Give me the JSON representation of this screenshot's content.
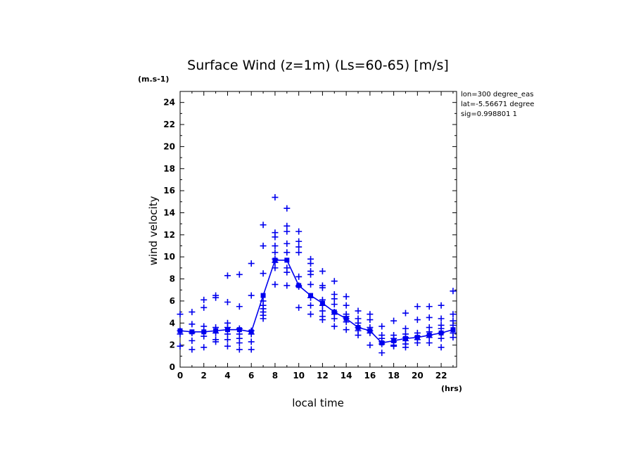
{
  "chart_data": {
    "type": "scatter",
    "title": "Surface Wind (z=1m) (Ls=60-65) [m/s]",
    "ylabel": "wind velocity",
    "xlabel": "local time",
    "y_unit": "(m.s-1)",
    "x_unit": "(hrs)",
    "annotations": [
      "lon=300 degree_eas",
      "lat=-5.56671 degree",
      "sig=0.998801 1"
    ],
    "xlim": [
      0,
      23.3
    ],
    "ylim": [
      0,
      25
    ],
    "xticks": [
      0,
      2,
      4,
      6,
      8,
      10,
      12,
      14,
      16,
      18,
      20,
      22
    ],
    "yticks": [
      0,
      2,
      4,
      6,
      8,
      10,
      12,
      14,
      16,
      18,
      20,
      22,
      24
    ],
    "grid": false,
    "colors": {
      "series": "#0000ee",
      "axes": "#000000"
    },
    "series": [
      {
        "kind": "samples",
        "marker": "plus",
        "points": [
          [
            0,
            4.8
          ],
          [
            0,
            3.3
          ],
          [
            0,
            3.0
          ],
          [
            0,
            1.9
          ],
          [
            1,
            5.0
          ],
          [
            1,
            3.9
          ],
          [
            1,
            3.1
          ],
          [
            1,
            2.4
          ],
          [
            1,
            1.6
          ],
          [
            2,
            6.1
          ],
          [
            2,
            5.4
          ],
          [
            2,
            3.7
          ],
          [
            2,
            3.2
          ],
          [
            2,
            2.8
          ],
          [
            2,
            1.8
          ],
          [
            3,
            6.5
          ],
          [
            3,
            6.3
          ],
          [
            3,
            3.6
          ],
          [
            3,
            3.1
          ],
          [
            3,
            2.5
          ],
          [
            3,
            2.3
          ],
          [
            4,
            8.3
          ],
          [
            4,
            5.9
          ],
          [
            4,
            4.0
          ],
          [
            4,
            3.6
          ],
          [
            4,
            3.0
          ],
          [
            4,
            2.5
          ],
          [
            4,
            1.9
          ],
          [
            5,
            8.4
          ],
          [
            5,
            5.5
          ],
          [
            5,
            3.5
          ],
          [
            5,
            3.0
          ],
          [
            5,
            2.6
          ],
          [
            5,
            2.2
          ],
          [
            5,
            1.6
          ],
          [
            6,
            9.4
          ],
          [
            6,
            6.5
          ],
          [
            6,
            3.3
          ],
          [
            6,
            3.0
          ],
          [
            6,
            2.3
          ],
          [
            6,
            1.6
          ],
          [
            7,
            12.9
          ],
          [
            7,
            11.0
          ],
          [
            7,
            8.5
          ],
          [
            7,
            6.0
          ],
          [
            7,
            5.6
          ],
          [
            7,
            5.3
          ],
          [
            7,
            5.0
          ],
          [
            7,
            4.7
          ],
          [
            7,
            4.4
          ],
          [
            8,
            15.4
          ],
          [
            8,
            12.2
          ],
          [
            8,
            11.8
          ],
          [
            8,
            11.0
          ],
          [
            8,
            10.4
          ],
          [
            8,
            9.8
          ],
          [
            8,
            9.5
          ],
          [
            8,
            9.0
          ],
          [
            8,
            7.5
          ],
          [
            9,
            14.4
          ],
          [
            9,
            12.8
          ],
          [
            9,
            12.3
          ],
          [
            9,
            11.2
          ],
          [
            9,
            10.4
          ],
          [
            9,
            9.0
          ],
          [
            9,
            8.6
          ],
          [
            9,
            7.4
          ],
          [
            10,
            12.3
          ],
          [
            10,
            11.4
          ],
          [
            10,
            10.9
          ],
          [
            10,
            10.4
          ],
          [
            10,
            8.2
          ],
          [
            10,
            7.4
          ],
          [
            10,
            7.3
          ],
          [
            10,
            5.4
          ],
          [
            11,
            9.8
          ],
          [
            11,
            9.4
          ],
          [
            11,
            8.7
          ],
          [
            11,
            8.4
          ],
          [
            11,
            7.5
          ],
          [
            11,
            6.3
          ],
          [
            11,
            5.6
          ],
          [
            11,
            4.8
          ],
          [
            12,
            8.7
          ],
          [
            12,
            7.4
          ],
          [
            12,
            7.2
          ],
          [
            12,
            6.1
          ],
          [
            12,
            5.6
          ],
          [
            12,
            5.1
          ],
          [
            12,
            4.6
          ],
          [
            12,
            4.3
          ],
          [
            13,
            7.8
          ],
          [
            13,
            6.6
          ],
          [
            13,
            6.2
          ],
          [
            13,
            5.7
          ],
          [
            13,
            5.0
          ],
          [
            13,
            4.8
          ],
          [
            13,
            4.4
          ],
          [
            13,
            3.7
          ],
          [
            14,
            6.4
          ],
          [
            14,
            5.6
          ],
          [
            14,
            4.8
          ],
          [
            14,
            4.6
          ],
          [
            14,
            4.4
          ],
          [
            14,
            4.1
          ],
          [
            14,
            3.4
          ],
          [
            15,
            5.1
          ],
          [
            15,
            4.4
          ],
          [
            15,
            4.0
          ],
          [
            15,
            3.6
          ],
          [
            15,
            3.3
          ],
          [
            15,
            2.9
          ],
          [
            16,
            4.8
          ],
          [
            16,
            4.3
          ],
          [
            16,
            3.6
          ],
          [
            16,
            3.3
          ],
          [
            16,
            3.1
          ],
          [
            16,
            2.0
          ],
          [
            17,
            3.7
          ],
          [
            17,
            2.9
          ],
          [
            17,
            2.6
          ],
          [
            17,
            2.3
          ],
          [
            17,
            2.1
          ],
          [
            17,
            1.3
          ],
          [
            18,
            4.2
          ],
          [
            18,
            2.9
          ],
          [
            18,
            2.6
          ],
          [
            18,
            2.3
          ],
          [
            18,
            2.0
          ],
          [
            18,
            1.9
          ],
          [
            19,
            4.9
          ],
          [
            19,
            3.5
          ],
          [
            19,
            3.0
          ],
          [
            19,
            2.7
          ],
          [
            19,
            2.4
          ],
          [
            19,
            2.1
          ],
          [
            19,
            1.8
          ],
          [
            20,
            5.5
          ],
          [
            20,
            4.3
          ],
          [
            20,
            3.1
          ],
          [
            20,
            2.8
          ],
          [
            20,
            2.5
          ],
          [
            20,
            2.2
          ],
          [
            21,
            5.5
          ],
          [
            21,
            4.5
          ],
          [
            21,
            3.6
          ],
          [
            21,
            3.2
          ],
          [
            21,
            2.9
          ],
          [
            21,
            2.7
          ],
          [
            21,
            2.2
          ],
          [
            22,
            5.6
          ],
          [
            22,
            4.4
          ],
          [
            22,
            3.8
          ],
          [
            22,
            3.5
          ],
          [
            22,
            3.1
          ],
          [
            22,
            2.6
          ],
          [
            22,
            1.8
          ],
          [
            23,
            6.9
          ],
          [
            23,
            4.8
          ],
          [
            23,
            4.2
          ],
          [
            23,
            3.8
          ],
          [
            23,
            3.1
          ],
          [
            23,
            2.7
          ]
        ]
      },
      {
        "kind": "mean",
        "marker": "square-line",
        "x": [
          0,
          1,
          2,
          3,
          4,
          5,
          6,
          7,
          8,
          9,
          10,
          11,
          12,
          13,
          14,
          15,
          16,
          17,
          18,
          19,
          20,
          21,
          22,
          23
        ],
        "y": [
          3.3,
          3.2,
          3.2,
          3.3,
          3.4,
          3.4,
          3.2,
          6.5,
          9.7,
          9.7,
          7.4,
          6.5,
          5.8,
          5.0,
          4.4,
          3.6,
          3.3,
          2.2,
          2.4,
          2.6,
          2.7,
          2.9,
          3.1,
          3.4
        ]
      }
    ]
  }
}
